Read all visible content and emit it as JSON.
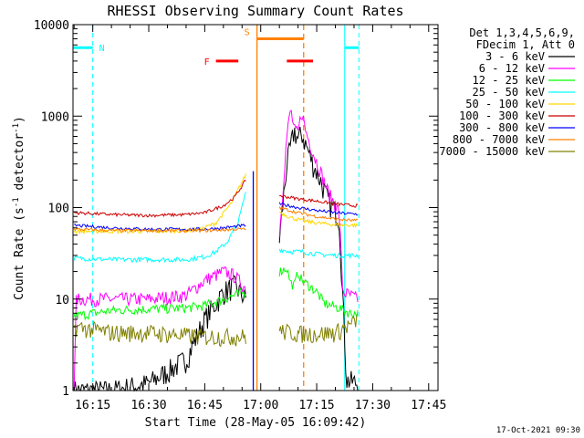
{
  "chart_data": {
    "type": "line",
    "title": "RHESSI Observing Summary Count Rates",
    "xlabel": "Start Time (28-May-05 16:09:42)",
    "ylabel_main": "Count Rate (s",
    "ylabel_sup": "-1",
    "ylabel_mid": " detector",
    "ylabel_end": ")",
    "footer": "17-Oct-2021 09:30",
    "yscale": "log",
    "ylim": [
      1,
      10000
    ],
    "xlim_min": [
      969.7,
      1067.5
    ],
    "x_unit": "minutes since 00:00 UT",
    "x_ticks": [
      {
        "label": "16:15",
        "value": 975
      },
      {
        "label": "16:30",
        "value": 990
      },
      {
        "label": "16:45",
        "value": 1005
      },
      {
        "label": "17:00",
        "value": 1020
      },
      {
        "label": "17:15",
        "value": 1035
      },
      {
        "label": "17:30",
        "value": 1050
      },
      {
        "label": "17:45",
        "value": 1065
      }
    ],
    "y_ticks": [
      {
        "label": "1",
        "value": 1
      },
      {
        "label": "10",
        "value": 10
      },
      {
        "label": "100",
        "value": 100
      },
      {
        "label": "1000",
        "value": 1000
      },
      {
        "label": "10000",
        "value": 10000
      }
    ],
    "legend_header": [
      "Det 1,3,4,5,6,9,",
      "FDecim 1, Att 0"
    ],
    "legend_placement": "right",
    "series": [
      {
        "name": "3 - 6 keV",
        "color": "#000000",
        "pre": [
          [
            970,
            1
          ],
          [
            980,
            1
          ],
          [
            990,
            1.2
          ],
          [
            1000,
            2.2
          ],
          [
            1005,
            6
          ],
          [
            1010,
            12
          ],
          [
            1013,
            14
          ],
          [
            1016,
            10
          ]
        ],
        "post": [
          [
            1025,
            45
          ],
          [
            1027,
            300
          ],
          [
            1029,
            700
          ],
          [
            1030,
            550
          ],
          [
            1031,
            650
          ],
          [
            1032,
            500
          ],
          [
            1034,
            300
          ],
          [
            1036,
            200
          ],
          [
            1038,
            120
          ],
          [
            1041,
            80
          ],
          [
            1042,
            10
          ],
          [
            1043,
            1.3
          ],
          [
            1046,
            1.2
          ]
        ]
      },
      {
        "name": "6 - 12 keV",
        "color": "#ff00ff",
        "pre": [
          [
            970,
            1
          ],
          [
            970.6,
            10
          ],
          [
            980,
            10
          ],
          [
            990,
            10
          ],
          [
            1000,
            11
          ],
          [
            1005,
            16
          ],
          [
            1010,
            20
          ],
          [
            1013,
            18
          ],
          [
            1016,
            13
          ]
        ],
        "post": [
          [
            1025,
            50
          ],
          [
            1027,
            600
          ],
          [
            1028,
            1200
          ],
          [
            1029,
            700
          ],
          [
            1030,
            650
          ],
          [
            1031,
            1150
          ],
          [
            1032,
            700
          ],
          [
            1034,
            400
          ],
          [
            1036,
            250
          ],
          [
            1038,
            150
          ],
          [
            1041,
            90
          ],
          [
            1042,
            12
          ],
          [
            1046,
            10
          ]
        ]
      },
      {
        "name": "12 - 25 keV",
        "color": "#00ff00",
        "pre": [
          [
            970,
            6.5
          ],
          [
            975,
            7
          ],
          [
            980,
            7.5
          ],
          [
            990,
            7.8
          ],
          [
            1000,
            8
          ],
          [
            1005,
            8.5
          ],
          [
            1010,
            10
          ],
          [
            1013,
            11
          ],
          [
            1016,
            12
          ]
        ],
        "post": [
          [
            1025,
            20
          ],
          [
            1027,
            22
          ],
          [
            1028,
            15
          ],
          [
            1029,
            14
          ],
          [
            1030,
            20
          ],
          [
            1031,
            16
          ],
          [
            1033,
            14
          ],
          [
            1035,
            12
          ],
          [
            1037,
            9
          ],
          [
            1041,
            8
          ],
          [
            1044,
            7
          ],
          [
            1046,
            7
          ]
        ]
      },
      {
        "name": "25 - 50 keV",
        "color": "#00ffff",
        "pre": [
          [
            970,
            28
          ],
          [
            980,
            27
          ],
          [
            990,
            27
          ],
          [
            1000,
            27
          ],
          [
            1005,
            29
          ],
          [
            1008,
            33
          ],
          [
            1011,
            42
          ],
          [
            1014,
            70
          ],
          [
            1016,
            150
          ]
        ],
        "post": [
          [
            1025,
            35
          ],
          [
            1028,
            33
          ],
          [
            1031,
            33
          ],
          [
            1035,
            31
          ],
          [
            1040,
            30
          ],
          [
            1045,
            30
          ],
          [
            1046,
            30
          ]
        ]
      },
      {
        "name": "50 - 100 keV",
        "color": "#ffd700",
        "pre": [
          [
            970,
            55
          ],
          [
            980,
            55
          ],
          [
            990,
            55
          ],
          [
            1000,
            56
          ],
          [
            1004,
            58
          ],
          [
            1008,
            68
          ],
          [
            1012,
            110
          ],
          [
            1016,
            230
          ]
        ],
        "post": [
          [
            1025,
            90
          ],
          [
            1028,
            78
          ],
          [
            1031,
            72
          ],
          [
            1035,
            68
          ],
          [
            1040,
            65
          ],
          [
            1045,
            64
          ],
          [
            1046,
            64
          ]
        ]
      },
      {
        "name": "100 - 300 keV",
        "color": "#cc0000",
        "pre": [
          [
            970,
            88
          ],
          [
            980,
            84
          ],
          [
            990,
            82
          ],
          [
            1000,
            84
          ],
          [
            1005,
            88
          ],
          [
            1010,
            105
          ],
          [
            1013,
            130
          ],
          [
            1016,
            200
          ]
        ],
        "post": [
          [
            1025,
            135
          ],
          [
            1030,
            125
          ],
          [
            1035,
            118
          ],
          [
            1040,
            110
          ],
          [
            1045,
            105
          ],
          [
            1046,
            105
          ]
        ]
      },
      {
        "name": "300 - 800 keV",
        "color": "#0000ff",
        "pre": [
          [
            970,
            64
          ],
          [
            980,
            60
          ],
          [
            990,
            58
          ],
          [
            1000,
            58
          ],
          [
            1005,
            58
          ],
          [
            1010,
            60
          ],
          [
            1013,
            62
          ],
          [
            1016,
            64
          ]
        ],
        "post": [
          [
            1025,
            110
          ],
          [
            1030,
            100
          ],
          [
            1035,
            93
          ],
          [
            1040,
            88
          ],
          [
            1045,
            85
          ],
          [
            1046,
            85
          ]
        ]
      },
      {
        "name": "800 - 7000 keV",
        "color": "#ff8000",
        "pre": [
          [
            970,
            58
          ],
          [
            980,
            56
          ],
          [
            990,
            56
          ],
          [
            1000,
            56
          ],
          [
            1005,
            56
          ],
          [
            1010,
            57
          ],
          [
            1013,
            58
          ],
          [
            1016,
            58
          ]
        ],
        "post": [
          [
            1025,
            100
          ],
          [
            1030,
            88
          ],
          [
            1035,
            80
          ],
          [
            1040,
            75
          ],
          [
            1045,
            72
          ],
          [
            1046,
            72
          ]
        ]
      },
      {
        "name": "7000 - 15000 keV",
        "color": "#808000",
        "pre": [
          [
            970,
            5
          ],
          [
            980,
            4.3
          ],
          [
            990,
            4.3
          ],
          [
            1000,
            4
          ],
          [
            1005,
            3.9
          ],
          [
            1010,
            3.9
          ],
          [
            1013,
            3.9
          ],
          [
            1016,
            3.9
          ]
        ],
        "post": [
          [
            1025,
            4.5
          ],
          [
            1030,
            4.2
          ],
          [
            1035,
            4.2
          ],
          [
            1040,
            4.3
          ],
          [
            1045,
            5.5
          ],
          [
            1046,
            6
          ]
        ]
      }
    ],
    "annotations": {
      "night": {
        "label": "N",
        "color": "#00ffff",
        "level": 5600,
        "bars": [
          [
            969.7,
            975
          ],
          [
            1042.5,
            1046.3
          ]
        ],
        "lines": [
          {
            "x": 975,
            "style": "dashed"
          },
          {
            "x": 1042.5,
            "style": "solid"
          },
          {
            "x": 1046.3,
            "style": "dashed"
          },
          {
            "x": 969.7,
            "style": "solid"
          }
        ]
      },
      "flare": {
        "label": "F",
        "color": "#ff0000",
        "level": 4000,
        "bars": [
          [
            1008,
            1014
          ],
          [
            1027,
            1034
          ]
        ]
      },
      "saa": {
        "label": "S",
        "color": "#ff8000",
        "level": 7000,
        "bars": [
          [
            1019,
            1031.5
          ]
        ],
        "lines": [
          {
            "x": 1019,
            "style": "solid"
          },
          {
            "x": 1031.5,
            "style": "dashed"
          }
        ]
      },
      "attenuator_lines": [
        {
          "x": 1018,
          "color": "#0000ff"
        }
      ]
    }
  }
}
